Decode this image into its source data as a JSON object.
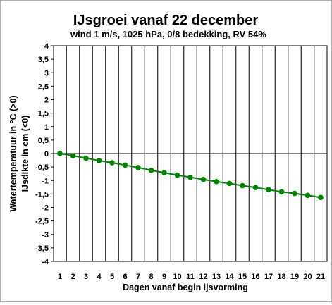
{
  "chart_data": {
    "type": "line",
    "title": "IJsgroei vanaf 22 december",
    "subtitle": "wind 1 m/s, 1025 hPa, 0/8 bedekking, RV 54%",
    "xlabel": "Dagen vanaf begin ijsvorming",
    "ylabel_line1": "Watertemperatuur in °C (>0)",
    "ylabel_line2": "IJsdikte in cm  (<0)",
    "ylim": [
      -4,
      4
    ],
    "y_step": 0.5,
    "y_tick_labels": [
      "4",
      "3,5",
      "3",
      "2,5",
      "2",
      "1,5",
      "1",
      "0,5",
      "0",
      "-0,5",
      "-1",
      "-1,5",
      "-2",
      "-2,5",
      "-3",
      "-3,5",
      "-4"
    ],
    "x_tick_labels": [
      "1",
      "2",
      "3",
      "4",
      "5",
      "6",
      "7",
      "8",
      "9",
      "10",
      "11",
      "12",
      "13",
      "14",
      "15",
      "16",
      "17",
      "18",
      "19",
      "20",
      "21"
    ],
    "grid": "vertical",
    "series": [
      {
        "color": "#008000",
        "x": [
          1,
          2,
          3,
          4,
          5,
          6,
          7,
          8,
          9,
          10,
          11,
          12,
          13,
          14,
          15,
          16,
          17,
          18,
          19,
          20,
          21
        ],
        "values": [
          0.0,
          -0.08,
          -0.17,
          -0.26,
          -0.34,
          -0.43,
          -0.52,
          -0.62,
          -0.71,
          -0.8,
          -0.88,
          -0.96,
          -1.04,
          -1.11,
          -1.19,
          -1.26,
          -1.34,
          -1.42,
          -1.48,
          -1.55,
          -1.63
        ]
      }
    ]
  }
}
